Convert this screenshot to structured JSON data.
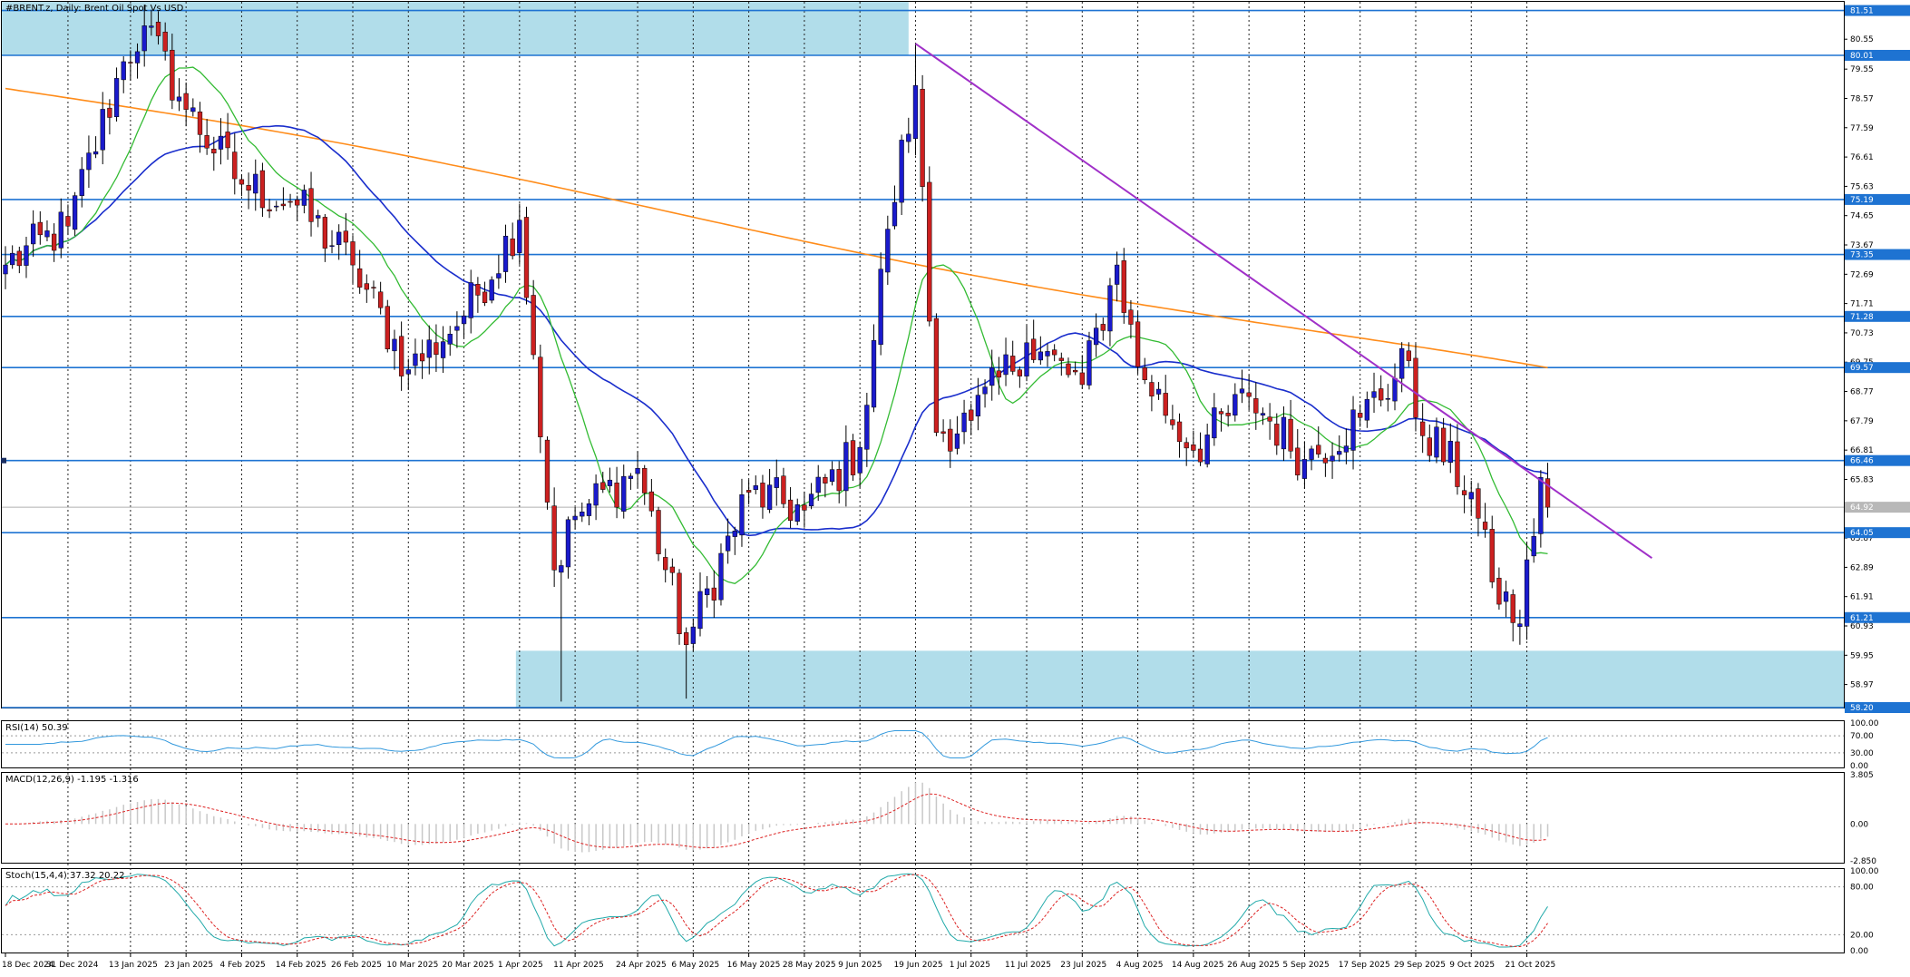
{
  "main": {
    "title": "#BRENT.z, Daily:  Brent Oil Spot Vs USD",
    "y_ticks": [
      "80.55",
      "79.55",
      "78.57",
      "77.59",
      "76.61",
      "75.63",
      "74.65",
      "73.67",
      "72.69",
      "71.71",
      "70.73",
      "69.75",
      "68.77",
      "67.79",
      "66.81",
      "65.83",
      "64.85",
      "63.87",
      "62.89",
      "61.91",
      "60.93",
      "59.95",
      "58.97",
      "58.20"
    ],
    "level_labels": [
      "81.51",
      "80.01",
      "75.19",
      "73.35",
      "71.28",
      "69.57",
      "66.46",
      "64.05",
      "61.21",
      "58.20"
    ],
    "price_label": "64.92"
  },
  "x_axis": {
    "labels": [
      "18 Dec 2024",
      "31 Dec 2024",
      "13 Jan 2025",
      "23 Jan 2025",
      "4 Feb 2025",
      "14 Feb 2025",
      "26 Feb 2025",
      "10 Mar 2025",
      "20 Mar 2025",
      "1 Apr 2025",
      "11 Apr 2025",
      "24 Apr 2025",
      "6 May 2025",
      "16 May 2025",
      "28 May 2025",
      "9 Jun 2025",
      "19 Jun 2025",
      "1 Jul 2025",
      "11 Jul 2025",
      "23 Jul 2025",
      "4 Aug 2025",
      "14 Aug 2025",
      "26 Aug 2025",
      "5 Sep 2025",
      "17 Sep 2025",
      "29 Sep 2025",
      "9 Oct 2025",
      "21 Oct 2025"
    ]
  },
  "rsi": {
    "title": "RSI(14) 50.39",
    "ticks": [
      "100.00",
      "70.00",
      "30.00",
      "0.00"
    ]
  },
  "macd": {
    "title": "MACD(12,26,9) -1.195 -1.316",
    "ticks": [
      "3.805",
      "0.00",
      "-2.850"
    ]
  },
  "stoch": {
    "title": "Stoch(15,4,4) 37.32 20.22",
    "ticks": [
      "100.00",
      "80.00",
      "20.00",
      "0.00"
    ]
  },
  "colors": {
    "up_candle": "#1a1acc",
    "down_candle": "#cc2020",
    "ma_fast": "#33bb33",
    "ma_mid": "#1a2ecc",
    "ma_slow": "#ff8c1a",
    "level_line": "#1e73d2",
    "zone_fill": "#a9d9e8",
    "trendline": "#a030c8",
    "rsi_line": "#3399dd",
    "macd_signal": "#dd2222",
    "macd_hist": "#c8c8c8",
    "stoch_main": "#22aaaa",
    "stoch_signal": "#dd2222"
  },
  "chart_data": [
    {
      "type": "candlestick",
      "title": "#BRENT.z, Daily:  Brent Oil Spot Vs USD",
      "x_range": [
        "18 Dec 2024",
        "21 Oct 2025"
      ],
      "ylim": [
        58.2,
        81.8
      ],
      "anchors": [
        {
          "date": "18 Dec 2024",
          "close": 73.0
        },
        {
          "date": "31 Dec 2024",
          "close": 74.3
        },
        {
          "date": "10 Jan 2025",
          "close": 79.8
        },
        {
          "date": "15 Jan 2025",
          "close": 81.0
        },
        {
          "date": "23 Jan 2025",
          "close": 78.2
        },
        {
          "date": "4 Feb 2025",
          "close": 75.7
        },
        {
          "date": "14 Feb 2025",
          "close": 75.0
        },
        {
          "date": "26 Feb 2025",
          "close": 73.0
        },
        {
          "date": "10 Mar 2025",
          "close": 69.5
        },
        {
          "date": "20 Mar 2025",
          "close": 71.3
        },
        {
          "date": "1 Apr 2025",
          "close": 74.5
        },
        {
          "date": "3 Apr 2025",
          "close": 70.0
        },
        {
          "date": "8 Apr 2025",
          "close": 62.8
        },
        {
          "date": "11 Apr 2025",
          "close": 64.6
        },
        {
          "date": "24 Apr 2025",
          "close": 66.2
        },
        {
          "date": "5 May 2025",
          "close": 60.3
        },
        {
          "date": "16 May 2025",
          "close": 65.4
        },
        {
          "date": "28 May 2025",
          "close": 64.8
        },
        {
          "date": "9 Jun 2025",
          "close": 66.9
        },
        {
          "date": "13 Jun 2025",
          "close": 74.2
        },
        {
          "date": "19 Jun 2025",
          "close": 79.0
        },
        {
          "date": "24 Jun 2025",
          "close": 67.4
        },
        {
          "date": "1 Jul 2025",
          "close": 67.8
        },
        {
          "date": "11 Jul 2025",
          "close": 70.4
        },
        {
          "date": "23 Jul 2025",
          "close": 69.0
        },
        {
          "date": "30 Jul 2025",
          "close": 73.0
        },
        {
          "date": "4 Aug 2025",
          "close": 69.6
        },
        {
          "date": "14 Aug 2025",
          "close": 66.8
        },
        {
          "date": "26 Aug 2025",
          "close": 68.6
        },
        {
          "date": "5 Sep 2025",
          "close": 66.5
        },
        {
          "date": "17 Sep 2025",
          "close": 67.9
        },
        {
          "date": "26 Sep 2025",
          "close": 69.8
        },
        {
          "date": "29 Sep 2025",
          "close": 67.9
        },
        {
          "date": "9 Oct 2025",
          "close": 65.4
        },
        {
          "date": "14 Oct 2025",
          "close": 62.4
        },
        {
          "date": "20 Oct 2025",
          "close": 61.0
        },
        {
          "date": "23 Oct 2025",
          "close": 65.9
        },
        {
          "date": "24 Oct 2025",
          "close": 64.9
        }
      ],
      "horizontal_levels": [
        81.51,
        80.01,
        75.19,
        73.35,
        71.28,
        69.57,
        66.46,
        64.05,
        61.21,
        58.2
      ],
      "zones": [
        {
          "from_date": "18 Dec 2024",
          "to_date": "18 Jun 2025",
          "low": 80.01,
          "high": 81.8
        },
        {
          "from_date": "1 Apr 2025",
          "to_date": "6 Jan 2026",
          "low": 58.2,
          "high": 60.1
        }
      ],
      "trendline": {
        "from": {
          "date": "19 Jun 2025",
          "value": 80.4
        },
        "to": {
          "date": "14 Nov 2025",
          "value": 63.2
        }
      },
      "series": [
        {
          "name": "MA fast",
          "window": 20
        },
        {
          "name": "MA mid",
          "window": 50
        },
        {
          "name": "MA slow",
          "window": 200
        }
      ]
    },
    {
      "type": "line",
      "title": "RSI(14) 50.39",
      "ylim": [
        0,
        100
      ],
      "last": 50.39
    },
    {
      "type": "bar",
      "title": "MACD(12,26,9) -1.195 -1.316",
      "ylim": [
        -2.85,
        3.805
      ],
      "last": [
        -1.195,
        -1.316
      ]
    },
    {
      "type": "line",
      "title": "Stoch(15,4,4) 37.32 20.22",
      "ylim": [
        0,
        100
      ],
      "last": [
        37.32,
        20.22
      ]
    }
  ]
}
